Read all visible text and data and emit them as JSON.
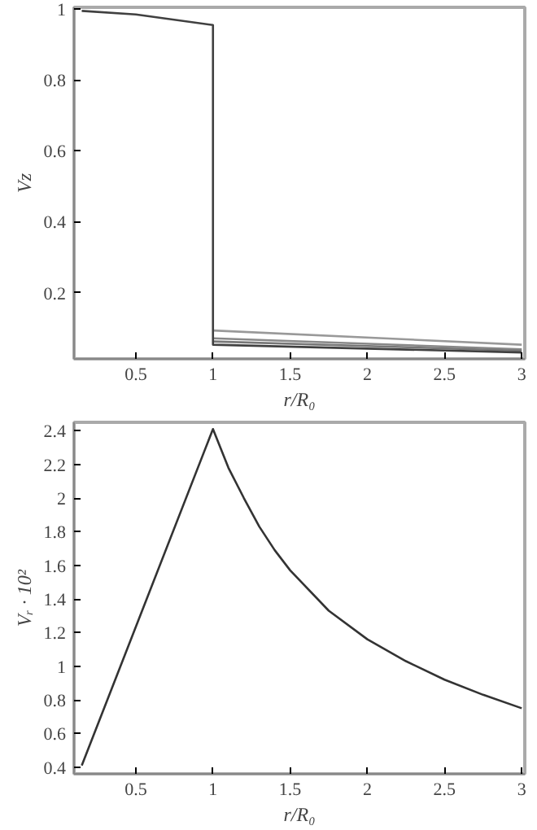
{
  "chart_data": [
    {
      "type": "line",
      "xlabel": "r/R₀",
      "ylabel": "Vz",
      "xlim": [
        0.1,
        3.02
      ],
      "ylim": [
        0.013,
        1.005
      ],
      "xticks": [
        0.5,
        1,
        1.5,
        2,
        2.5,
        3
      ],
      "yticks": [
        0.2,
        0.4,
        0.6,
        0.8,
        1
      ],
      "grid": false,
      "marker": "none",
      "line_style": "solid",
      "series": [
        {
          "color": "#999999",
          "x": [
            1,
            3
          ],
          "values": [
            0.093,
            0.053
          ]
        },
        {
          "color": "#888888",
          "x": [
            1,
            3
          ],
          "values": [
            0.071,
            0.04
          ]
        },
        {
          "color": "#777777",
          "x": [
            1,
            3
          ],
          "values": [
            0.062,
            0.036
          ]
        },
        {
          "color": "#404040",
          "x": [
            0.15,
            0.5,
            1,
            1,
            1,
            3
          ],
          "values": [
            0.995,
            0.985,
            0.955,
            0.89,
            0.053,
            0.031
          ]
        }
      ]
    },
    {
      "type": "line",
      "xlabel": "r/R₀",
      "ylabel": "Vᵣ · 10²",
      "xlim": [
        0.1,
        3.02
      ],
      "ylim": [
        0.36,
        2.45
      ],
      "xticks": [
        0.5,
        1,
        1.5,
        2,
        2.5,
        3
      ],
      "yticks": [
        0.4,
        0.6,
        0.8,
        1,
        1.2,
        1.4,
        1.6,
        1.8,
        2,
        2.2,
        2.4
      ],
      "grid": false,
      "marker": "none",
      "line_style": "solid",
      "series": [
        {
          "color": "#333333",
          "x": [
            0.15,
            1,
            1.1,
            1.2,
            1.3,
            1.4,
            1.5,
            1.75,
            2,
            2.25,
            2.5,
            2.75,
            3
          ],
          "values": [
            0.41,
            2.41,
            2.18,
            2.0,
            1.83,
            1.69,
            1.57,
            1.33,
            1.16,
            1.03,
            0.92,
            0.83,
            0.75
          ]
        }
      ]
    }
  ]
}
